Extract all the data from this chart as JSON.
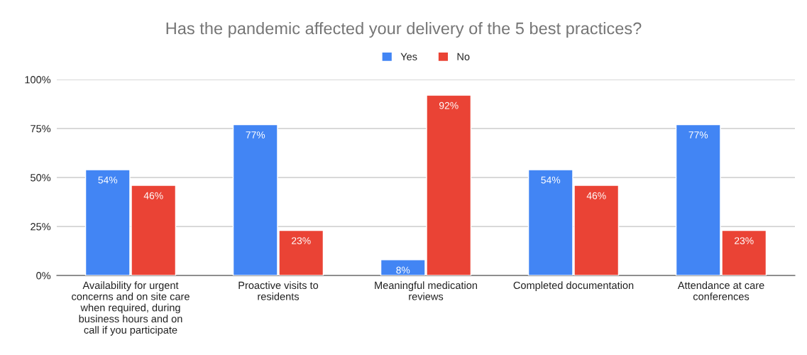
{
  "chart_data": {
    "type": "bar",
    "title": "Has the pandemic affected your delivery of the 5 best practices?",
    "categories": [
      "Availability for urgent\nconcerns and on site care\nwhen required, during\nbusiness hours and on\ncall if you participate",
      "Proactive visits to\nresidents",
      "Meaningful medication\nreviews",
      "Completed documentation",
      "Attendance at care\nconferences"
    ],
    "series": [
      {
        "name": "Yes",
        "color": "#4285f4",
        "values": [
          54,
          77,
          8,
          54,
          77
        ],
        "value_labels": [
          "54%",
          "77%",
          "8%",
          "54%",
          "77%"
        ]
      },
      {
        "name": "No",
        "color": "#ea4335",
        "values": [
          46,
          23,
          92,
          46,
          23
        ],
        "value_labels": [
          "46%",
          "23%",
          "92%",
          "46%",
          "23%"
        ]
      }
    ],
    "ylim": [
      0,
      100
    ],
    "yticks": [
      {
        "value": 0,
        "label": "0%"
      },
      {
        "value": 25,
        "label": "25%"
      },
      {
        "value": 50,
        "label": "50%"
      },
      {
        "value": 75,
        "label": "75%"
      },
      {
        "value": 100,
        "label": "100%"
      }
    ],
    "grid": "y",
    "legend": "top"
  }
}
